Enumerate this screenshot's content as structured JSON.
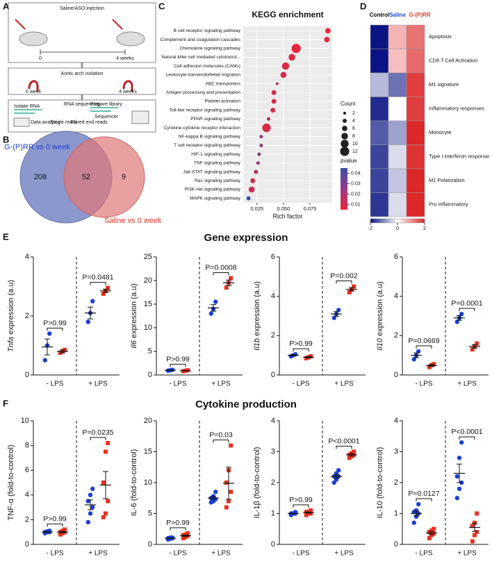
{
  "panel_labels": [
    "A",
    "B",
    "C",
    "D",
    "E",
    "F"
  ],
  "section_titles": [
    "Gene expression",
    "Cytokine production"
  ],
  "diagram": {
    "step1": "Saline/ASO injection",
    "t0": "0",
    "t4": "4 weeks",
    "step2": "Aortic arch isolation",
    "w0": "0 week",
    "w4": "4 weeks",
    "step3": "RNA sequencing",
    "isolate": "Isolate RNA",
    "prepare": "Prepare library",
    "sequencer": "Sequencer",
    "analysis": "Data analysis",
    "single": "Single reads",
    "paired": "Paired end reads"
  },
  "chart_data": [
    {
      "type": "venn",
      "sets": [
        "G-(P)RR vs 0 week",
        "Saline vs 0 week"
      ],
      "counts": [
        "208",
        "52",
        "9"
      ],
      "colors": [
        "#7886c4",
        "#df7777"
      ]
    },
    {
      "type": "bubble",
      "title": "KEGG enrichment",
      "x_label": "Rich factor",
      "categories": [
        "B cell receptor signaling pathway",
        "Complement and coagulation cascades",
        "Chemokine signaling pathway",
        "Natural killer cell mediated cytotoxicit...",
        "Cell adhesion molecules (CAMs)",
        "Leukocyte transendothelial migration",
        "ABC transporters",
        "Antigen processing and presentation",
        "Platelet activation",
        "Toll-like receptor signaling pathway",
        "PPAR signaling pathway",
        "Cytokine-cytokine receptor interaction",
        "NF-kappa B signaling pathway",
        "T cell receptor signaling pathway",
        "HIF-1 signaling pathway",
        "TNF signaling pathway",
        "Jak-STAT signaling pathway",
        "Ras signaling pathway",
        "PI3K-Akt signaling pathway",
        "MAPK signaling pathway"
      ],
      "values": [
        0.092,
        0.091,
        0.062,
        0.058,
        0.052,
        0.05,
        0.044,
        0.041,
        0.041,
        0.04,
        0.036,
        0.034,
        0.029,
        0.029,
        0.027,
        0.026,
        0.024,
        0.021,
        0.02,
        0.017
      ],
      "sizes": [
        6,
        6,
        12,
        8,
        9,
        7,
        2,
        5,
        5,
        5,
        3,
        11,
        3,
        3,
        3,
        3,
        4,
        5,
        7,
        4
      ],
      "pvalues": [
        0.005,
        0.005,
        0.006,
        0.008,
        0.008,
        0.01,
        0.02,
        0.01,
        0.01,
        0.01,
        0.02,
        0.008,
        0.025,
        0.025,
        0.025,
        0.025,
        0.02,
        0.012,
        0.012,
        0.045
      ],
      "xlim": [
        0.012,
        0.096
      ],
      "xticks": [
        {
          "value": 0.025,
          "label": "0.025"
        },
        {
          "value": 0.05,
          "label": "0.050"
        },
        {
          "value": 0.075,
          "label": "0.075"
        }
      ],
      "size_label": "Count",
      "size_ticks": [
        2,
        4,
        6,
        8,
        10,
        12
      ],
      "color_label": "pvalue",
      "clim": [
        0.005,
        0.045
      ],
      "color_ticks": [
        0.04,
        0.03,
        0.02,
        0.01
      ],
      "grid": true
    },
    {
      "type": "heatmap",
      "columns": [
        "Control",
        "Saline",
        "G-(P)RR"
      ],
      "column_colors": [
        "#000000",
        "#1f3fd1",
        "#e53a2a"
      ],
      "rows": [
        "Apoptosis",
        "CD8 T Cell Activation",
        "M1 signature",
        "Inflammatory responses",
        "Monocyte",
        "Type I interferon response",
        "M1 Polarization",
        "Pro inflammatory"
      ],
      "values": [
        [
          -2,
          0.7,
          1.3
        ],
        [
          -2,
          0.6,
          1.4
        ],
        [
          -0.6,
          -1.2,
          1.8
        ],
        [
          -1.8,
          0,
          1.8
        ],
        [
          -1.4,
          -0.8,
          2
        ],
        [
          -1.6,
          -0.3,
          1.9
        ],
        [
          -1.6,
          -0.5,
          2
        ],
        [
          -1.7,
          -0.3,
          2
        ]
      ],
      "clim": [
        -2,
        2
      ],
      "cticks": [
        -2,
        0,
        2
      ]
    },
    {
      "type": "strip",
      "ylabel_gene": "Tnfa",
      "ylabel": " expression (a.u)",
      "categories": [
        "- LPS",
        "+ LPS"
      ],
      "ylim": [
        0,
        4
      ],
      "yticks": [
        0,
        2,
        4
      ],
      "p_labels": [
        "P>0.99",
        "P=0.0481"
      ],
      "series": [
        {
          "color": "#1a3fd6",
          "marker": "circle",
          "values": [
            [
              0.5,
              1.0,
              1.4
            ],
            [
              1.8,
              2.1,
              2.5
            ]
          ],
          "mean": [
            0.95,
            2.1
          ],
          "sem": [
            0.27,
            0.2
          ]
        },
        {
          "color": "#e8321f",
          "marker": "square",
          "values": [
            [
              0.75,
              0.8,
              0.85
            ],
            [
              2.75,
              2.85,
              2.95
            ]
          ],
          "mean": [
            0.8,
            2.85
          ],
          "sem": [
            0.05,
            0.06
          ]
        }
      ]
    },
    {
      "type": "strip",
      "ylabel_gene": "Il6",
      "ylabel": " expression (a.u)",
      "categories": [
        "- LPS",
        "+ LPS"
      ],
      "ylim": [
        0,
        25
      ],
      "yticks": [
        0,
        5,
        10,
        15,
        20,
        25
      ],
      "p_labels": [
        "P>0.99",
        "P=0.0008"
      ],
      "series": [
        {
          "color": "#1a3fd6",
          "marker": "circle",
          "values": [
            [
              0.9,
              1.0,
              1.1
            ],
            [
              13,
              14,
              15.5
            ]
          ],
          "mean": [
            1.0,
            14.2
          ],
          "sem": [
            0.06,
            0.7
          ]
        },
        {
          "color": "#e8321f",
          "marker": "square",
          "values": [
            [
              0.8,
              0.9,
              1.0
            ],
            [
              18.5,
              19.5,
              20.5
            ]
          ],
          "mean": [
            0.9,
            19.5
          ],
          "sem": [
            0.06,
            0.6
          ]
        }
      ]
    },
    {
      "type": "strip",
      "ylabel_gene": "Il1b",
      "ylabel": " expression (a.u)",
      "categories": [
        "- LPS",
        "+ LPS"
      ],
      "ylim": [
        0,
        6
      ],
      "yticks": [
        0,
        2,
        4,
        6
      ],
      "p_labels": [
        "P>0.99",
        "P=0.002"
      ],
      "series": [
        {
          "color": "#1a3fd6",
          "marker": "circle",
          "values": [
            [
              0.95,
              1.0,
              1.05
            ],
            [
              2.9,
              3.1,
              3.3
            ]
          ],
          "mean": [
            1.0,
            3.1
          ],
          "sem": [
            0.03,
            0.12
          ]
        },
        {
          "color": "#e8321f",
          "marker": "square",
          "values": [
            [
              0.85,
              0.9,
              0.95
            ],
            [
              4.2,
              4.35,
              4.5
            ]
          ],
          "mean": [
            0.9,
            4.35
          ],
          "sem": [
            0.03,
            0.09
          ]
        }
      ]
    },
    {
      "type": "strip",
      "ylabel_gene": "Il10",
      "ylabel": " expression (a.u)",
      "categories": [
        "- LPS",
        "+ LPS"
      ],
      "ylim": [
        0,
        6
      ],
      "yticks": [
        0,
        2,
        4,
        6
      ],
      "p_labels": [
        "P=0.0669",
        "P=0.0001"
      ],
      "series": [
        {
          "color": "#1a3fd6",
          "marker": "circle",
          "values": [
            [
              0.8,
              1.0,
              1.2
            ],
            [
              2.7,
              2.9,
              3.1
            ]
          ],
          "mean": [
            1.0,
            2.9
          ],
          "sem": [
            0.12,
            0.12
          ]
        },
        {
          "color": "#e8321f",
          "marker": "square",
          "values": [
            [
              0.4,
              0.5,
              0.55
            ],
            [
              1.3,
              1.45,
              1.6
            ]
          ],
          "mean": [
            0.48,
            1.45
          ],
          "sem": [
            0.05,
            0.09
          ]
        }
      ]
    },
    {
      "type": "strip",
      "ylabel": "TNF-α (fold-to-control)",
      "categories": [
        "- LPS",
        "+ LPS"
      ],
      "ylim": [
        0,
        10
      ],
      "yticks": [
        0,
        2,
        4,
        6,
        8,
        10
      ],
      "p_labels": [
        "P>0.99",
        "P=0.0235"
      ],
      "series": [
        {
          "color": "#1a3fd6",
          "marker": "circle",
          "values": [
            [
              0.9,
              1,
              1,
              1,
              1.05,
              1.1
            ],
            [
              1.8,
              2.5,
              3.0,
              3.5,
              4,
              4.5
            ]
          ],
          "mean": [
            1.0,
            3.2
          ],
          "sem": [
            0.03,
            0.4
          ]
        },
        {
          "color": "#e8321f",
          "marker": "square",
          "values": [
            [
              0.8,
              0.9,
              1,
              1,
              1.1,
              1.2
            ],
            [
              2.2,
              2.5,
              3.5,
              5,
              7.5,
              8.2
            ]
          ],
          "mean": [
            1.0,
            4.8
          ],
          "sem": [
            0.06,
            1.1
          ]
        }
      ]
    },
    {
      "type": "strip",
      "ylabel": "IL-6 (fold-to-control)",
      "categories": [
        "- LPS",
        "+ LPS"
      ],
      "ylim": [
        0,
        20
      ],
      "yticks": [
        0,
        5,
        10,
        15,
        20
      ],
      "p_labels": [
        "P>0.99",
        "P=0.03"
      ],
      "series": [
        {
          "color": "#1a3fd6",
          "marker": "circle",
          "values": [
            [
              0.8,
              0.9,
              1,
              1,
              1.1,
              1.1
            ],
            [
              6.8,
              7,
              7.3,
              7.5,
              7.8,
              8.5
            ]
          ],
          "mean": [
            1.0,
            7.5
          ],
          "sem": [
            0.05,
            0.25
          ]
        },
        {
          "color": "#e8321f",
          "marker": "square",
          "values": [
            [
              1.0,
              1.2,
              1.4,
              1.5,
              1.6,
              1.8
            ],
            [
              6,
              7,
              8.5,
              10,
              12,
              16
            ]
          ],
          "mean": [
            1.4,
            9.9
          ],
          "sem": [
            0.12,
            2.6
          ]
        }
      ]
    },
    {
      "type": "strip",
      "ylabel": "IL-1β (fold-to-control)",
      "categories": [
        "- LPS",
        "+ LPS"
      ],
      "ylim": [
        0,
        4
      ],
      "yticks": [
        0,
        1,
        2,
        3,
        4
      ],
      "p_labels": [
        "P>0.99",
        "P<0.0001"
      ],
      "series": [
        {
          "color": "#1a3fd6",
          "marker": "circle",
          "values": [
            [
              0.95,
              1,
              1,
              1,
              1,
              1.05
            ],
            [
              2.0,
              2.1,
              2.2,
              2.2,
              2.3,
              2.4
            ]
          ],
          "mean": [
            1.0,
            2.2
          ],
          "sem": [
            0.01,
            0.06
          ]
        },
        {
          "color": "#e8321f",
          "marker": "square",
          "values": [
            [
              0.95,
              1,
              1,
              1.05,
              1.05,
              1.1
            ],
            [
              2.8,
              2.85,
              2.9,
              2.9,
              2.95,
              3.0
            ]
          ],
          "mean": [
            1.03,
            2.9
          ],
          "sem": [
            0.02,
            0.04
          ]
        }
      ]
    },
    {
      "type": "strip",
      "ylabel": "IL-10 (fold-to-control)",
      "categories": [
        "- LPS",
        "+ LPS"
      ],
      "ylim": [
        0,
        4
      ],
      "yticks": [
        0,
        1,
        2,
        3,
        4
      ],
      "p_labels": [
        "P=0.0127",
        "P<0.0001"
      ],
      "series": [
        {
          "color": "#1a3fd6",
          "marker": "circle",
          "values": [
            [
              0.7,
              0.9,
              1.0,
              1.05,
              1.1,
              1.3
            ],
            [
              1.5,
              1.8,
              2.0,
              2.2,
              2.8,
              3.3
            ]
          ],
          "mean": [
            1.0,
            2.3
          ],
          "sem": [
            0.08,
            0.3
          ]
        },
        {
          "color": "#e8321f",
          "marker": "square",
          "values": [
            [
              0.2,
              0.3,
              0.35,
              0.4,
              0.45,
              0.5
            ],
            [
              0.1,
              0.3,
              0.4,
              0.6,
              0.7,
              1.0
            ]
          ],
          "mean": [
            0.37,
            0.55
          ],
          "sem": [
            0.05,
            0.13
          ]
        }
      ]
    }
  ]
}
